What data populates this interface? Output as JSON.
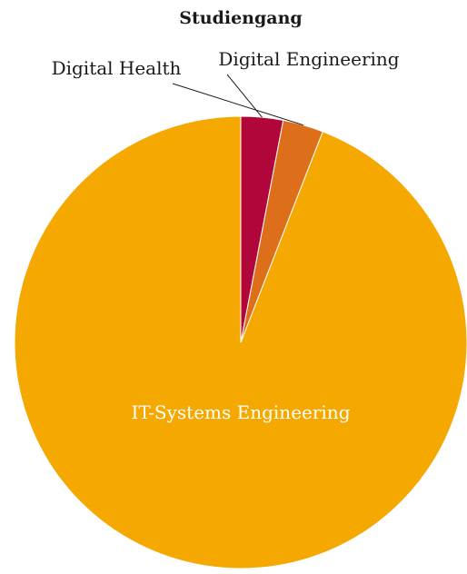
{
  "chart_data": {
    "type": "pie",
    "title": "Studiengang",
    "start_angle_deg": 0,
    "direction": "counterclockwise",
    "slices": [
      {
        "label": "IT-Systems Engineering",
        "value": 94.1,
        "color": "#f5a800",
        "label_position": "inside",
        "label_color": "#ffffff"
      },
      {
        "label": "Digital Health",
        "value": 2.9,
        "color": "#dd6f1b",
        "label_position": "outside",
        "label_color": "#1a1a1a"
      },
      {
        "label": "Digital Engineering",
        "value": 3.0,
        "color": "#b1063a",
        "label_position": "outside",
        "label_color": "#1a1a1a"
      }
    ]
  }
}
